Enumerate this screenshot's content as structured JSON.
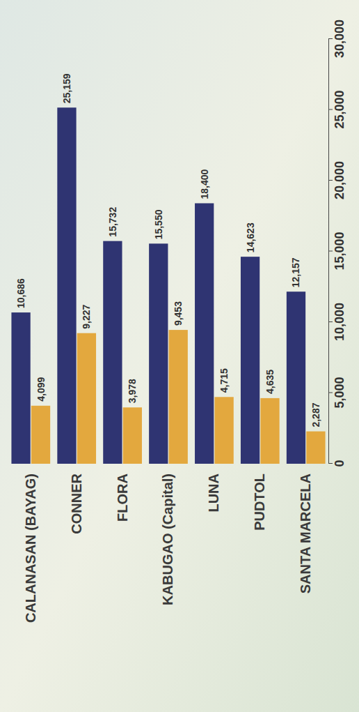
{
  "chart_data": {
    "type": "bar",
    "orientation": "horizontal",
    "data_labels": true,
    "grid": false,
    "categories": [
      "CALANASAN (BAYAG)",
      "CONNER",
      "FLORA",
      "KABUGAO (Capital)",
      "LUNA",
      "PUDTOL",
      "SANTA MARCELA"
    ],
    "series": [
      {
        "color": "#2f3472",
        "values": [
          10686,
          25159,
          15732,
          15550,
          18400,
          14623,
          12157
        ],
        "value_labels": [
          "10,686",
          "25,159",
          "15,732",
          "15,550",
          "18,400",
          "14,623",
          "12,157"
        ]
      },
      {
        "color": "#e3a83e",
        "values": [
          4099,
          9227,
          3978,
          9453,
          4715,
          4635,
          2287
        ],
        "value_labels": [
          "4,099",
          "9,227",
          "3,978",
          "9,453",
          "4,715",
          "4,635",
          "2,287"
        ]
      }
    ],
    "xlim": [
      0,
      30000
    ],
    "xticks": [
      0,
      {
        "value": 5000,
        "label": "5,000"
      },
      {
        "value": 10000,
        "label": "10,000"
      },
      {
        "value": 15000,
        "label": "15,000"
      },
      {
        "value": 20000,
        "label": "20,000"
      },
      {
        "value": 25000,
        "label": "25,000"
      },
      {
        "value": 30000,
        "label": "30,000"
      }
    ]
  }
}
